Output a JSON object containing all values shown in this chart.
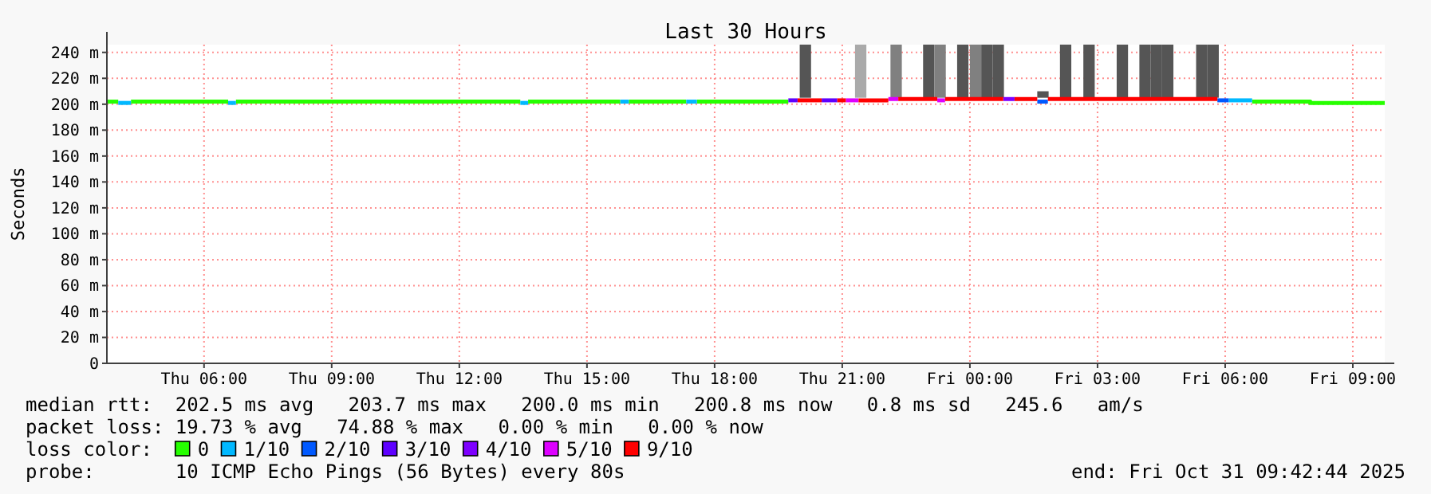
{
  "chart_data": {
    "type": "line",
    "title": "Last 30 Hours",
    "ylabel": "Seconds",
    "xlim": [
      "2025-10-30T03:43",
      "2025-10-31T09:45"
    ],
    "xticks": [
      {
        "value": "2025-10-30T06:00",
        "label": "Thu 06:00"
      },
      {
        "value": "2025-10-30T09:00",
        "label": "Thu 09:00"
      },
      {
        "value": "2025-10-30T12:00",
        "label": "Thu 12:00"
      },
      {
        "value": "2025-10-30T15:00",
        "label": "Thu 15:00"
      },
      {
        "value": "2025-10-30T18:00",
        "label": "Thu 18:00"
      },
      {
        "value": "2025-10-30T21:00",
        "label": "Thu 21:00"
      },
      {
        "value": "2025-10-31T00:00",
        "label": "Fri 00:00"
      },
      {
        "value": "2025-10-31T03:00",
        "label": "Fri 03:00"
      },
      {
        "value": "2025-10-31T06:00",
        "label": "Fri 06:00"
      },
      {
        "value": "2025-10-31T09:00",
        "label": "Fri 09:00"
      }
    ],
    "ylim": [
      0,
      246
    ],
    "yticks": [
      0,
      {
        "value": 20,
        "label": "20 m"
      },
      {
        "value": 40,
        "label": "40 m"
      },
      {
        "value": 60,
        "label": "60 m"
      },
      {
        "value": 80,
        "label": "80 m"
      },
      {
        "value": 100,
        "label": "100 m"
      },
      {
        "value": 120,
        "label": "120 m"
      },
      {
        "value": 140,
        "label": "140 m"
      },
      {
        "value": 160,
        "label": "160 m"
      },
      {
        "value": 180,
        "label": "180 m"
      },
      {
        "value": 200,
        "label": "200 m"
      },
      {
        "value": 220,
        "label": "220 m"
      },
      {
        "value": 240,
        "label": "240 m"
      }
    ],
    "grid": true,
    "legend": "bottom",
    "legend_title": "loss color:",
    "series": [
      {
        "type": "bar",
        "x": [
          "2025-10-30T20:08",
          "2025-10-30T21:26",
          "2025-10-30T22:16",
          "2025-10-30T23:02",
          "2025-10-30T23:18",
          "2025-10-30T23:50",
          "2025-10-31T00:08",
          "2025-10-31T00:24",
          "2025-10-31T00:40",
          "2025-10-31T01:43",
          "2025-10-31T02:15",
          "2025-10-31T02:48",
          "2025-10-31T03:35",
          "2025-10-31T04:07",
          "2025-10-31T04:23",
          "2025-10-31T04:39",
          "2025-10-31T05:27",
          "2025-10-31T05:43"
        ],
        "base": [
          205,
          205,
          205,
          205,
          205,
          205,
          205,
          205,
          205,
          205,
          205,
          205,
          205,
          205,
          205,
          205,
          205,
          205
        ],
        "values": [
          41,
          41,
          41,
          41,
          41,
          41,
          41,
          41,
          41,
          5,
          41,
          41,
          41,
          41,
          41,
          41,
          41,
          41
        ],
        "colors": [
          "#555555",
          "#aaaaaa",
          "#808080",
          "#555555",
          "#808080",
          "#555555",
          "#808080",
          "#555555",
          "#555555",
          "#555555",
          "#555555",
          "#555555",
          "#555555",
          "#555555",
          "#555555",
          "#555555",
          "#555555",
          "#555555"
        ]
      },
      {
        "name": "0",
        "color": "#26ff00",
        "x": [
          "2025-10-30T03:43",
          "2025-10-30T03:59"
        ],
        "values": [
          202,
          202
        ]
      },
      {
        "color": "#26ff00",
        "x": [
          "2025-10-30T04:17",
          "2025-10-30T06:34"
        ],
        "values": [
          202,
          202
        ]
      },
      {
        "color": "#26ff00",
        "x": [
          "2025-10-30T06:45",
          "2025-10-30T13:26"
        ],
        "values": [
          202,
          202
        ]
      },
      {
        "color": "#26ff00",
        "x": [
          "2025-10-30T13:37",
          "2025-10-30T15:47"
        ],
        "values": [
          202,
          202
        ]
      },
      {
        "color": "#26ff00",
        "x": [
          "2025-10-30T15:59",
          "2025-10-30T17:20"
        ],
        "values": [
          202,
          202
        ]
      },
      {
        "color": "#26ff00",
        "x": [
          "2025-10-30T17:35",
          "2025-10-30T19:44"
        ],
        "values": [
          202,
          202
        ]
      },
      {
        "color": "#26ff00",
        "x": [
          "2025-10-31T06:38",
          "2025-10-31T08:00",
          "2025-10-31T08:00",
          "2025-10-31T09:45"
        ],
        "values": [
          202,
          202,
          201,
          201
        ]
      },
      {
        "name": "1/10",
        "color": "#00b8ff",
        "x": [
          "2025-10-30T03:59",
          "2025-10-30T04:17"
        ],
        "values": [
          201,
          201
        ]
      },
      {
        "color": "#00b8ff",
        "x": [
          "2025-10-30T06:34",
          "2025-10-30T06:45"
        ],
        "values": [
          201,
          201
        ]
      },
      {
        "color": "#00b8ff",
        "x": [
          "2025-10-30T13:26",
          "2025-10-30T13:37"
        ],
        "values": [
          201,
          201
        ]
      },
      {
        "color": "#00b8ff",
        "x": [
          "2025-10-30T15:47",
          "2025-10-30T15:59"
        ],
        "values": [
          202,
          202
        ]
      },
      {
        "color": "#00b8ff",
        "x": [
          "2025-10-30T17:20",
          "2025-10-30T17:35"
        ],
        "values": [
          202,
          202
        ]
      },
      {
        "color": "#00b8ff",
        "x": [
          "2025-10-31T06:05",
          "2025-10-31T06:38"
        ],
        "values": [
          203,
          203
        ]
      },
      {
        "name": "2/10",
        "color": "#0059ff",
        "x": [
          "2025-10-31T01:35",
          "2025-10-31T01:50"
        ],
        "values": [
          202,
          202
        ]
      },
      {
        "color": "#0059ff",
        "x": [
          "2025-10-31T05:49",
          "2025-10-31T06:05"
        ],
        "values": [
          203,
          203
        ]
      },
      {
        "name": "3/10",
        "color": "#5e00ff",
        "x": [
          "2025-10-30T19:44",
          "2025-10-30T19:57"
        ],
        "values": [
          203,
          203
        ]
      },
      {
        "color": "#5e00ff",
        "x": [
          "2025-10-30T20:31",
          "2025-10-30T20:53"
        ],
        "values": [
          203,
          203
        ]
      },
      {
        "name": "4/10",
        "color": "#7e00ff",
        "x": [
          "2025-10-31T00:47",
          "2025-10-31T01:03"
        ],
        "values": [
          204,
          204
        ]
      },
      {
        "name": "5/10",
        "color": "#dd00ff",
        "x": [
          "2025-10-30T21:05",
          "2025-10-30T21:23"
        ],
        "values": [
          203,
          203
        ]
      },
      {
        "color": "#dd00ff",
        "x": [
          "2025-10-30T22:05",
          "2025-10-30T22:19"
        ],
        "values": [
          204,
          204
        ]
      },
      {
        "color": "#dd00ff",
        "x": [
          "2025-10-30T23:14",
          "2025-10-30T23:25"
        ],
        "values": [
          203,
          203
        ]
      },
      {
        "name": "9/10",
        "color": "#ff0000",
        "x": [
          "2025-10-30T19:57",
          "2025-10-30T20:31"
        ],
        "values": [
          203,
          203
        ]
      },
      {
        "color": "#ff0000",
        "x": [
          "2025-10-30T20:53",
          "2025-10-30T21:05"
        ],
        "values": [
          203,
          203
        ]
      },
      {
        "color": "#ff0000",
        "x": [
          "2025-10-30T21:23",
          "2025-10-30T22:05"
        ],
        "values": [
          203,
          203
        ]
      },
      {
        "color": "#ff0000",
        "x": [
          "2025-10-30T22:19",
          "2025-10-30T23:14"
        ],
        "values": [
          204,
          204
        ]
      },
      {
        "color": "#ff0000",
        "x": [
          "2025-10-30T23:25",
          "2025-10-31T00:47"
        ],
        "values": [
          204,
          204
        ]
      },
      {
        "color": "#ff0000",
        "x": [
          "2025-10-31T01:03",
          "2025-10-31T01:35"
        ],
        "values": [
          204,
          204
        ]
      },
      {
        "color": "#ff0000",
        "x": [
          "2025-10-31T01:50",
          "2025-10-31T05:49"
        ],
        "values": [
          204,
          204
        ]
      }
    ],
    "annotations": [
      "median rtt:  202.5 ms avg   203.7 ms max   200.0 ms min   200.8 ms now   0.8 ms sd   245.6   am/s",
      "packet loss: 19.73 % avg   74.88 % max   0.00 % min   0.00 % now",
      "probe:       10 ICMP Echo Pings (56 Bytes) every 80s",
      "end: Fri Oct 31 09:42:44 2025"
    ]
  }
}
